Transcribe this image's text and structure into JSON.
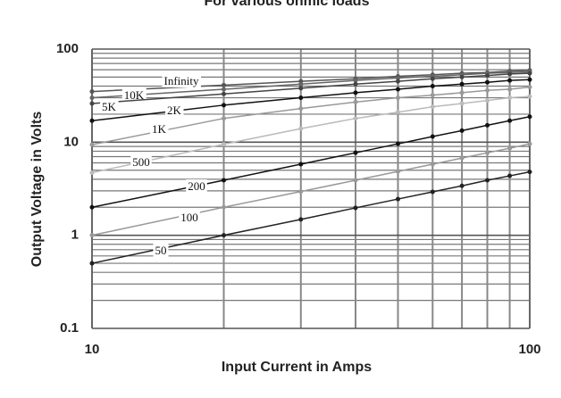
{
  "chart_data": {
    "type": "line",
    "title": "For various ohmic loads",
    "x_label": "Input Current in Amps",
    "y_label": "Output Voltage in Volts",
    "x": [
      10,
      20,
      30,
      40,
      50,
      60,
      70,
      80,
      90,
      100
    ],
    "xlim": [
      10,
      100
    ],
    "xticks": [
      10,
      100
    ],
    "ylim": [
      0.1,
      100
    ],
    "yticks": [
      0.1,
      1,
      10,
      100
    ],
    "xlog": true,
    "ylog": true,
    "grid": true,
    "minor_grid": true,
    "series": [
      {
        "name": "Infinity",
        "color": "#555555",
        "values": [
          35,
          41,
          45,
          48,
          51,
          53,
          55,
          56,
          58,
          59
        ]
      },
      {
        "name": "10K",
        "color": "#666666",
        "values": [
          30,
          37,
          42,
          46,
          49,
          51,
          53,
          55,
          56,
          57
        ]
      },
      {
        "name": "5K",
        "color": "#444444",
        "values": [
          26,
          33,
          38,
          42,
          45,
          48,
          50,
          52,
          54,
          55
        ]
      },
      {
        "name": "2K",
        "color": "#111111",
        "values": [
          17,
          25,
          30,
          34,
          37,
          40,
          42,
          44,
          46,
          47
        ]
      },
      {
        "name": "1K",
        "color": "#999999",
        "values": [
          9.4,
          18,
          23,
          27,
          30,
          32,
          34,
          36,
          37,
          39
        ]
      },
      {
        "name": "500",
        "color": "#bbbbbb",
        "values": [
          4.7,
          9.5,
          14,
          18,
          21,
          24,
          26,
          28,
          30,
          31
        ]
      },
      {
        "name": "200",
        "color": "#111111",
        "values": [
          2,
          3.9,
          5.8,
          7.7,
          9.6,
          11.5,
          13.3,
          15.2,
          17,
          18.8
        ]
      },
      {
        "name": "100",
        "color": "#999999",
        "values": [
          1,
          2,
          2.95,
          3.9,
          4.85,
          5.8,
          6.75,
          7.7,
          8.6,
          9.6
        ]
      },
      {
        "name": "50",
        "color": "#222222",
        "values": [
          0.5,
          1,
          1.48,
          1.97,
          2.45,
          2.93,
          3.4,
          3.9,
          4.35,
          4.8
        ]
      }
    ]
  }
}
